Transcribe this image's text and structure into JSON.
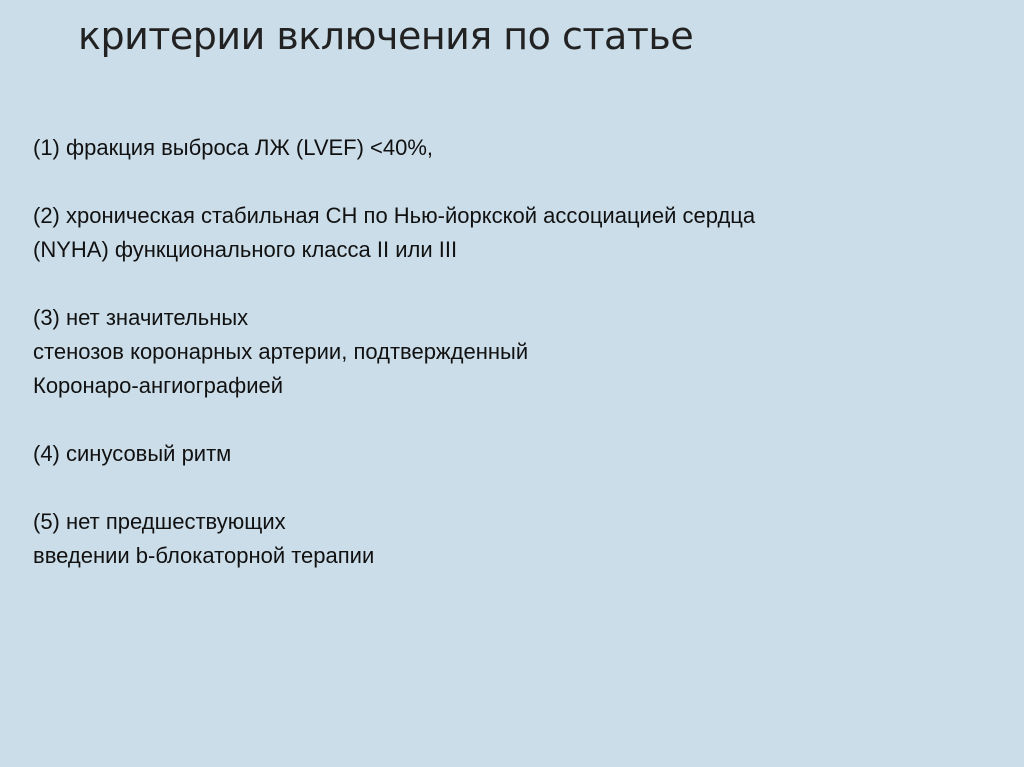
{
  "title": "критерии включения по статье",
  "items": [
    {
      "lines": [
        "(1) фракция выброса ЛЖ (LVEF) <40%,"
      ]
    },
    {
      "lines": [
        "(2) хроническая стабильная СН по Нью-йоркской ассоциацией сердца",
        "(NYHA) функционального класса II или III"
      ]
    },
    {
      "lines": [
        "(3) нет значительных",
        "стенозов коронарных артерии, подтвержденный",
        "Коронаро-ангиографией"
      ]
    },
    {
      "lines": [
        "(4) синусовый ритм"
      ]
    },
    {
      "lines": [
        "(5) нет предшествующих",
        "введении b-блокаторной терапии"
      ]
    }
  ],
  "colors": {
    "background": "#cbdde9",
    "text": "#111111"
  }
}
